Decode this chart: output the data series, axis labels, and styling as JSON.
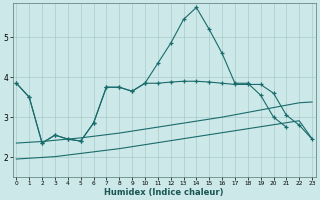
{
  "xlabel": "Humidex (Indice chaleur)",
  "bg_color": "#cce8e8",
  "grid_color": "#aacccc",
  "line_color": "#1a6b6b",
  "x_ticks": [
    0,
    1,
    2,
    3,
    4,
    5,
    6,
    7,
    8,
    9,
    10,
    11,
    12,
    13,
    14,
    15,
    16,
    17,
    18,
    19,
    20,
    21,
    22,
    23
  ],
  "y_ticks": [
    2,
    3,
    4,
    5
  ],
  "ylim": [
    1.5,
    5.85
  ],
  "xlim": [
    -0.3,
    23.3
  ],
  "line1_x": [
    0,
    1,
    2,
    3,
    4,
    5,
    6,
    7,
    8,
    9,
    10,
    11,
    12,
    13,
    14,
    15,
    16,
    17,
    18,
    19,
    20,
    21
  ],
  "line1_y": [
    3.85,
    3.5,
    2.35,
    2.55,
    2.45,
    2.4,
    2.85,
    3.75,
    3.75,
    3.65,
    3.85,
    4.35,
    4.85,
    5.45,
    5.75,
    5.2,
    4.6,
    3.85,
    3.85,
    3.55,
    3.0,
    2.75
  ],
  "line2_x": [
    0,
    1,
    2,
    3,
    4,
    5,
    6,
    7,
    8,
    9,
    10,
    11,
    12,
    13,
    14,
    15,
    16,
    17,
    18,
    19,
    20,
    21,
    22,
    23
  ],
  "line2_y": [
    1.95,
    1.97,
    1.99,
    2.01,
    2.05,
    2.09,
    2.13,
    2.17,
    2.21,
    2.26,
    2.31,
    2.36,
    2.41,
    2.46,
    2.51,
    2.56,
    2.61,
    2.66,
    2.71,
    2.76,
    2.81,
    2.86,
    2.91,
    2.46
  ],
  "line3_x": [
    0,
    1,
    2,
    3,
    4,
    5,
    6,
    7,
    8,
    9,
    10,
    11,
    12,
    13,
    14,
    15,
    16,
    17,
    18,
    19,
    20,
    21,
    22,
    23
  ],
  "line3_y": [
    2.35,
    2.37,
    2.39,
    2.42,
    2.45,
    2.48,
    2.52,
    2.56,
    2.6,
    2.65,
    2.7,
    2.75,
    2.8,
    2.85,
    2.9,
    2.95,
    3.0,
    3.06,
    3.12,
    3.18,
    3.24,
    3.3,
    3.36,
    3.38
  ],
  "line4_x": [
    0,
    1,
    2,
    3,
    4,
    5,
    6,
    7,
    8,
    9,
    10,
    11,
    12,
    13,
    14,
    15,
    16,
    17,
    18,
    19,
    20,
    21,
    22,
    23
  ],
  "line4_y": [
    3.85,
    3.5,
    2.35,
    2.55,
    2.45,
    2.4,
    2.85,
    3.75,
    3.75,
    3.65,
    3.85,
    3.85,
    3.88,
    3.9,
    3.9,
    3.88,
    3.85,
    3.82,
    3.82,
    3.82,
    3.6,
    3.05,
    2.8,
    2.45
  ]
}
